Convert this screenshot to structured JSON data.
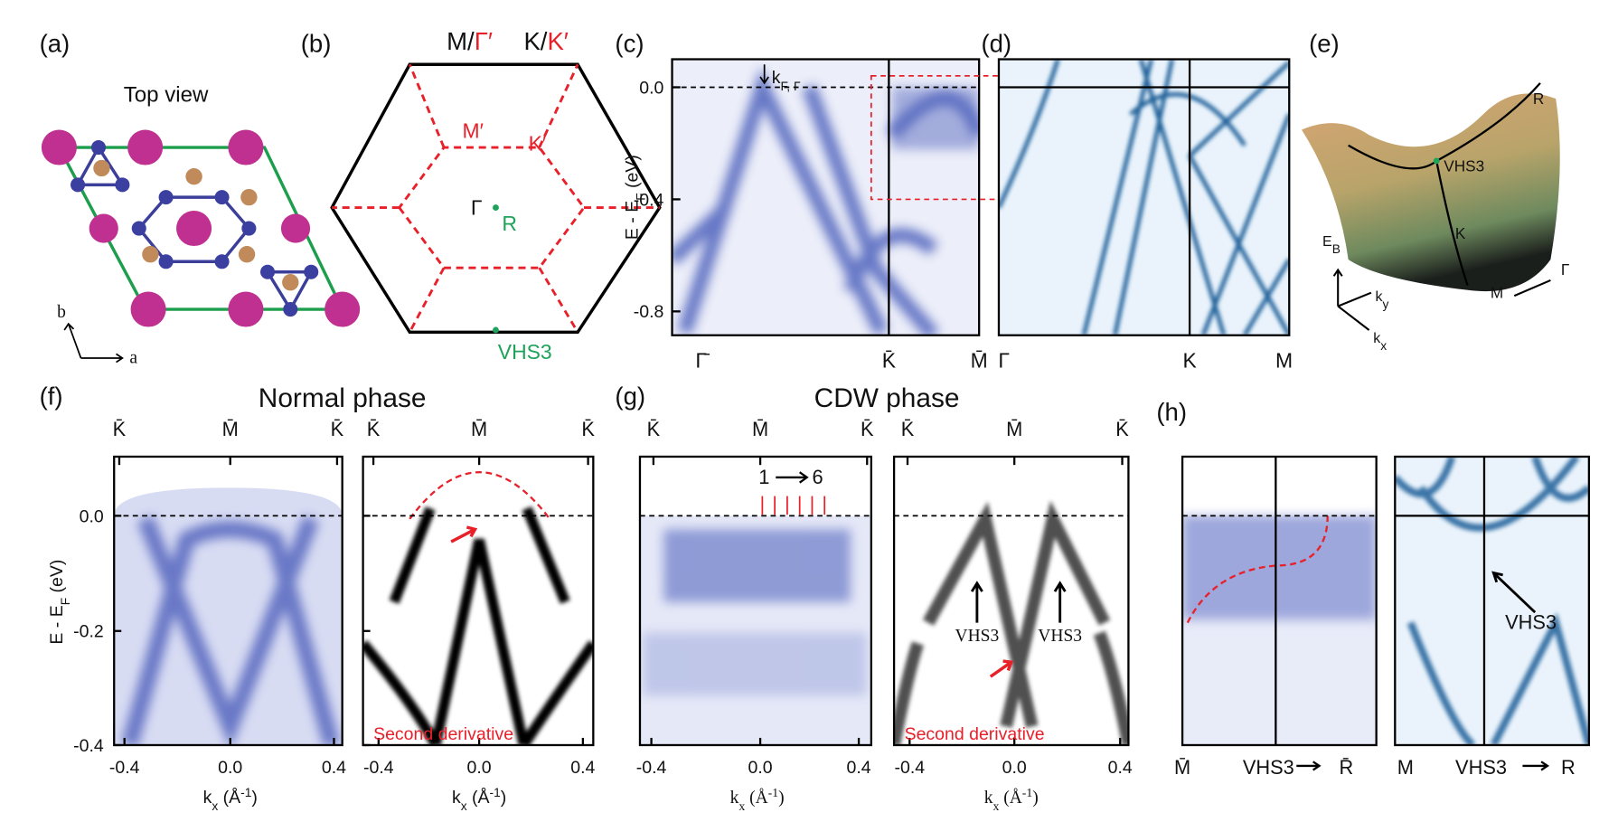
{
  "panels": {
    "a": {
      "label": "(a)",
      "title": "Top view",
      "axis_b": "b",
      "axis_a": "a"
    },
    "b": {
      "label": "(b)",
      "top_left": {
        "black": "M/",
        "red": "Γ′"
      },
      "top_right": {
        "black": "K/",
        "red": "K′"
      },
      "inner_m": "M′",
      "inner_k": "K′",
      "gamma": "Γ",
      "r": "R",
      "vhs": "VHS3"
    },
    "c": {
      "label": "(c)",
      "yticks": [
        "0.0",
        "-0.4",
        "-0.8"
      ],
      "ylabel": {
        "main": "E - E",
        "sub": "F",
        "unit": " (eV)"
      },
      "kf": {
        "main": "k",
        "sub": "F, Γ"
      },
      "xlabels": [
        "Γ̄",
        "K̄",
        "M̄"
      ]
    },
    "d": {
      "label": "(d)",
      "xlabels": [
        "Γ",
        "K",
        "M"
      ]
    },
    "e": {
      "label": "(e)",
      "points": [
        "R",
        "VHS3",
        "K",
        "M",
        "Γ"
      ],
      "eb": {
        "main": "E",
        "sub": "B"
      },
      "ky": {
        "main": "k",
        "sub": "y"
      },
      "kx": {
        "main": "k",
        "sub": "x"
      }
    },
    "f": {
      "label": "(f)",
      "title": "Normal phase",
      "top_labels": [
        "K̄",
        "M̄",
        "K̄",
        "K̄",
        "M̄",
        "K̄"
      ],
      "yticks": [
        "0.0",
        "-0.2",
        "-0.4"
      ],
      "ylabel": {
        "main": "E - E",
        "sub": "F",
        "unit": " (eV)"
      },
      "xticks": [
        "-0.4",
        "0.0",
        "0.4",
        "-0.4",
        "0.0",
        "0.4"
      ],
      "xlabels": [
        {
          "main": "k",
          "sub": "x",
          "unit": " (Å",
          "sup": "-1",
          "end": ")"
        },
        {
          "main": "k",
          "sub": "x",
          "unit": " (Å",
          "sup": "-1",
          "end": ")"
        }
      ],
      "note": "Second derivative"
    },
    "g": {
      "label": "(g)",
      "title": "CDW phase",
      "top_labels": [
        "K̄",
        "M̄",
        "K̄",
        "K̄",
        "M̄",
        "K̄"
      ],
      "xticks": [
        "-0.4",
        "0.0",
        "0.4",
        "-0.4",
        "0.0",
        "0.4"
      ],
      "xlabels": [
        {
          "main": "k",
          "sub": "x",
          "unit": " (Å",
          "sup": "-1",
          "end": ")"
        },
        {
          "main": "k",
          "sub": "x",
          "unit": " (Å",
          "sup": "-1",
          "end": ")"
        }
      ],
      "cut_start": "1",
      "cut_end": "6",
      "vhs": [
        "VHS3",
        "VHS3"
      ],
      "note": "Second derivative"
    },
    "h": {
      "label": "(h)",
      "left_axis": [
        "M̄",
        "VHS3",
        "R̄"
      ],
      "right_axis": [
        "M",
        "VHS3",
        "R"
      ],
      "vhs": "VHS3"
    }
  }
}
